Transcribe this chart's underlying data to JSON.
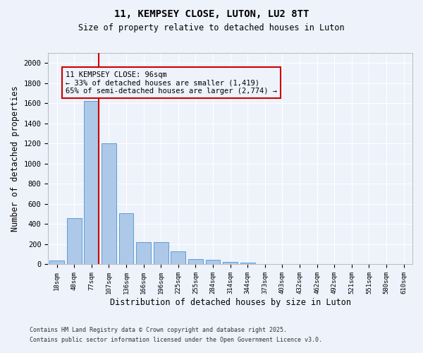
{
  "title": "11, KEMPSEY CLOSE, LUTON, LU2 8TT",
  "subtitle": "Size of property relative to detached houses in Luton",
  "xlabel": "Distribution of detached houses by size in Luton",
  "ylabel": "Number of detached properties",
  "footnote1": "Contains HM Land Registry data © Crown copyright and database right 2025.",
  "footnote2": "Contains public sector information licensed under the Open Government Licence v3.0.",
  "bar_labels": [
    "18sqm",
    "48sqm",
    "77sqm",
    "107sqm",
    "136sqm",
    "166sqm",
    "196sqm",
    "225sqm",
    "255sqm",
    "284sqm",
    "314sqm",
    "344sqm",
    "373sqm",
    "403sqm",
    "432sqm",
    "462sqm",
    "492sqm",
    "521sqm",
    "551sqm",
    "580sqm",
    "610sqm"
  ],
  "bar_values": [
    35,
    460,
    1625,
    1205,
    505,
    220,
    220,
    130,
    50,
    42,
    25,
    18,
    0,
    0,
    0,
    0,
    0,
    0,
    0,
    0,
    0
  ],
  "bar_color": "#adc8e8",
  "bar_edgecolor": "#5a9fd4",
  "ylim": [
    0,
    2100
  ],
  "yticks": [
    0,
    200,
    400,
    600,
    800,
    1000,
    1200,
    1400,
    1600,
    1800,
    2000
  ],
  "property_line_color": "#cc0000",
  "annotation_text": "11 KEMPSEY CLOSE: 96sqm\n← 33% of detached houses are smaller (1,419)\n65% of semi-detached houses are larger (2,774) →",
  "annotation_box_color": "#cc0000",
  "background_color": "#eef2fb",
  "grid_color": "#ffffff"
}
